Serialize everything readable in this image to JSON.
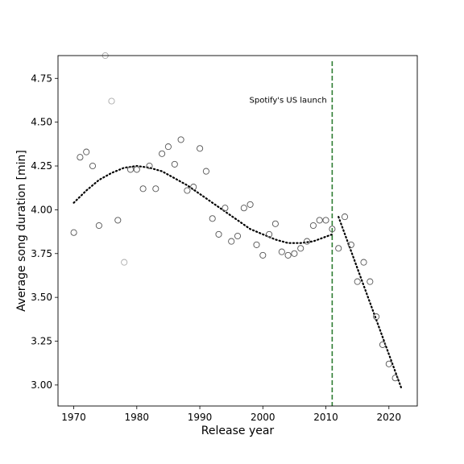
{
  "chart_data": {
    "type": "scatter",
    "title": "",
    "xlabel": "Release year",
    "ylabel": "Average song duration [min]",
    "xlim": [
      1967.5,
      2024.5
    ],
    "ylim": [
      2.88,
      4.88
    ],
    "xticks": [
      1970,
      1980,
      1990,
      2000,
      2010,
      2020
    ],
    "yticks": [
      3.0,
      3.25,
      3.5,
      3.75,
      4.0,
      4.25,
      4.5,
      4.75
    ],
    "grid": false,
    "legend": "none",
    "colors": {
      "marker": "#555555",
      "outlier_marker": "#aaaaaa",
      "trend": "#000000",
      "event_line": "#2e7d32"
    },
    "series": [
      {
        "style": "open-circle",
        "points": [
          [
            1970,
            3.87
          ],
          [
            1971,
            4.3
          ],
          [
            1972,
            4.33
          ],
          [
            1973,
            4.25
          ],
          [
            1974,
            3.91
          ],
          [
            1977,
            3.94
          ],
          [
            1979,
            4.23
          ],
          [
            1980,
            4.23
          ],
          [
            1981,
            4.12
          ],
          [
            1982,
            4.25
          ],
          [
            1983,
            4.12
          ],
          [
            1984,
            4.32
          ],
          [
            1985,
            4.36
          ],
          [
            1986,
            4.26
          ],
          [
            1987,
            4.4
          ],
          [
            1988,
            4.11
          ],
          [
            1989,
            4.13
          ],
          [
            1990,
            4.35
          ],
          [
            1991,
            4.22
          ],
          [
            1992,
            3.95
          ],
          [
            1993,
            3.86
          ],
          [
            1994,
            4.01
          ],
          [
            1995,
            3.82
          ],
          [
            1996,
            3.85
          ],
          [
            1997,
            4.01
          ],
          [
            1998,
            4.03
          ],
          [
            1999,
            3.8
          ],
          [
            2000,
            3.74
          ],
          [
            2001,
            3.86
          ],
          [
            2002,
            3.92
          ],
          [
            2003,
            3.76
          ],
          [
            2004,
            3.74
          ],
          [
            2005,
            3.75
          ],
          [
            2006,
            3.78
          ],
          [
            2007,
            3.82
          ],
          [
            2008,
            3.91
          ],
          [
            2009,
            3.94
          ],
          [
            2010,
            3.94
          ],
          [
            2011,
            3.89
          ],
          [
            2012,
            3.78
          ],
          [
            2013,
            3.96
          ],
          [
            2014,
            3.8
          ],
          [
            2015,
            3.59
          ],
          [
            2016,
            3.7
          ],
          [
            2017,
            3.59
          ],
          [
            2018,
            3.39
          ],
          [
            2019,
            3.23
          ],
          [
            2020,
            3.12
          ],
          [
            2021,
            3.04
          ]
        ]
      },
      {
        "style": "open-circle-light",
        "points": [
          [
            1975,
            4.88
          ],
          [
            1976,
            4.62
          ],
          [
            1978,
            3.7
          ]
        ]
      }
    ],
    "trend_lines": [
      {
        "style": "dotted",
        "points": [
          [
            1970,
            4.04
          ],
          [
            1972,
            4.11
          ],
          [
            1974,
            4.17
          ],
          [
            1976,
            4.21
          ],
          [
            1978,
            4.24
          ],
          [
            1980,
            4.25
          ],
          [
            1982,
            4.24
          ],
          [
            1984,
            4.22
          ],
          [
            1986,
            4.18
          ],
          [
            1988,
            4.14
          ],
          [
            1990,
            4.09
          ],
          [
            1992,
            4.04
          ],
          [
            1994,
            3.99
          ],
          [
            1996,
            3.94
          ],
          [
            1998,
            3.89
          ],
          [
            2000,
            3.86
          ],
          [
            2002,
            3.83
          ],
          [
            2004,
            3.81
          ],
          [
            2006,
            3.81
          ],
          [
            2008,
            3.82
          ],
          [
            2011,
            3.86
          ]
        ]
      },
      {
        "style": "dotted",
        "points": [
          [
            2012,
            3.96
          ],
          [
            2022,
            2.98
          ]
        ]
      }
    ],
    "vertical_lines": [
      {
        "x": 2011,
        "style": "dashed"
      }
    ],
    "annotations": [
      {
        "text": "Spotify's US launch",
        "x": 2004,
        "y": 4.61
      }
    ]
  }
}
